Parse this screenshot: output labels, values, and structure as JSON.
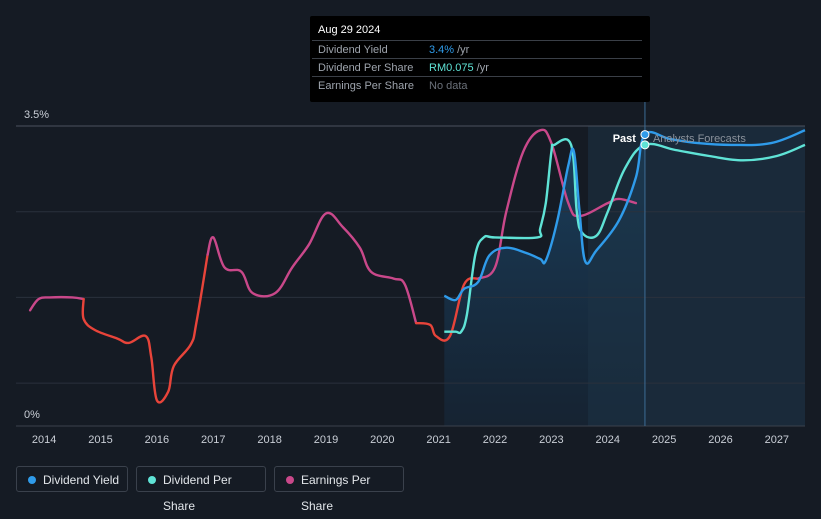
{
  "tooltip": {
    "date": "Aug 29 2024",
    "rows": [
      {
        "label": "Dividend Yield",
        "value": "3.4%",
        "unit": "/yr",
        "color": "#2f9bea"
      },
      {
        "label": "Dividend Per Share",
        "value": "RM0.075",
        "unit": "/yr",
        "color": "#5fe3d6"
      },
      {
        "label": "Earnings Per Share",
        "value": "No data",
        "unit": "",
        "color": "#6b717a"
      }
    ]
  },
  "legend": [
    {
      "label": "Dividend Yield",
      "color": "#2f9bea"
    },
    {
      "label": "Dividend Per Share",
      "color": "#5fe3d6"
    },
    {
      "label": "Earnings Per Share",
      "color": "#c9488a"
    }
  ],
  "chart_data": {
    "type": "line",
    "x_ticks": [
      "2014",
      "2015",
      "2016",
      "2017",
      "2018",
      "2019",
      "2020",
      "2021",
      "2022",
      "2023",
      "2024",
      "2025",
      "2026",
      "2027"
    ],
    "y_tick_labels": [
      "3.5%",
      "0%"
    ],
    "ylim": [
      0,
      3.5
    ],
    "xlim": [
      2013.5,
      2027.5
    ],
    "past_label": "Past",
    "forecast_label": "Analysts Forecasts",
    "divider_x": 2024.66,
    "forecast_start_x": 2023.65,
    "colors": {
      "yield": "#2f9bea",
      "dps": "#5fe3d6",
      "eps": "#c9488a",
      "eps_negative": "#e8443a",
      "grid": "#2a313c",
      "axis_text": "#c9ced6"
    },
    "series": [
      {
        "name": "Dividend Yield",
        "key": "yield",
        "points": [
          [
            2021.1,
            1.52
          ],
          [
            2021.3,
            1.47
          ],
          [
            2021.45,
            1.6
          ],
          [
            2021.7,
            1.68
          ],
          [
            2021.9,
            1.99
          ],
          [
            2022.2,
            2.08
          ],
          [
            2022.55,
            2.02
          ],
          [
            2022.8,
            1.95
          ],
          [
            2022.9,
            1.93
          ],
          [
            2023.1,
            2.38
          ],
          [
            2023.3,
            3.04
          ],
          [
            2023.4,
            3.2
          ],
          [
            2023.5,
            2.5
          ],
          [
            2023.6,
            1.92
          ],
          [
            2023.8,
            2.05
          ],
          [
            2024.2,
            2.4
          ],
          [
            2024.5,
            2.9
          ],
          [
            2024.66,
            3.4
          ],
          [
            2025.1,
            3.35
          ],
          [
            2025.6,
            3.3
          ],
          [
            2026.2,
            3.28
          ],
          [
            2026.9,
            3.3
          ],
          [
            2027.5,
            3.45
          ]
        ]
      },
      {
        "name": "Dividend Per Share",
        "key": "dps",
        "points": [
          [
            2021.1,
            1.1
          ],
          [
            2021.3,
            1.1
          ],
          [
            2021.4,
            1.1
          ],
          [
            2021.5,
            1.3
          ],
          [
            2021.65,
            2.0
          ],
          [
            2021.8,
            2.2
          ],
          [
            2022.0,
            2.2
          ],
          [
            2022.75,
            2.2
          ],
          [
            2022.8,
            2.3
          ],
          [
            2022.9,
            2.6
          ],
          [
            2023.0,
            3.2
          ],
          [
            2023.05,
            3.28
          ],
          [
            2023.35,
            3.28
          ],
          [
            2023.45,
            2.5
          ],
          [
            2023.55,
            2.25
          ],
          [
            2023.8,
            2.22
          ],
          [
            2024.0,
            2.5
          ],
          [
            2024.3,
            3.0
          ],
          [
            2024.66,
            3.28
          ],
          [
            2025.2,
            3.22
          ],
          [
            2025.8,
            3.15
          ],
          [
            2026.4,
            3.1
          ],
          [
            2027.0,
            3.15
          ],
          [
            2027.5,
            3.28
          ]
        ]
      },
      {
        "name": "Earnings Per Share",
        "key": "eps",
        "points": [
          [
            2013.75,
            1.35
          ],
          [
            2013.9,
            1.48
          ],
          [
            2014.1,
            1.5
          ],
          [
            2014.5,
            1.5
          ],
          [
            2014.7,
            1.48
          ],
          [
            2014.7,
            1.25
          ],
          [
            2014.9,
            1.12
          ],
          [
            2015.3,
            1.02
          ],
          [
            2015.5,
            0.97
          ],
          [
            2015.8,
            1.05
          ],
          [
            2015.9,
            0.8
          ],
          [
            2016.0,
            0.3
          ],
          [
            2016.2,
            0.4
          ],
          [
            2016.3,
            0.7
          ],
          [
            2016.6,
            0.95
          ],
          [
            2016.7,
            1.2
          ],
          [
            2016.9,
            2.0
          ],
          [
            2017.0,
            2.2
          ],
          [
            2017.2,
            1.85
          ],
          [
            2017.5,
            1.8
          ],
          [
            2017.7,
            1.55
          ],
          [
            2018.1,
            1.55
          ],
          [
            2018.4,
            1.85
          ],
          [
            2018.7,
            2.12
          ],
          [
            2019.0,
            2.48
          ],
          [
            2019.3,
            2.32
          ],
          [
            2019.6,
            2.08
          ],
          [
            2019.8,
            1.8
          ],
          [
            2020.2,
            1.72
          ],
          [
            2020.4,
            1.65
          ],
          [
            2020.6,
            1.2
          ],
          [
            2020.85,
            1.18
          ],
          [
            2020.95,
            1.05
          ],
          [
            2021.2,
            1.05
          ],
          [
            2021.45,
            1.65
          ],
          [
            2021.7,
            1.72
          ],
          [
            2022.0,
            1.85
          ],
          [
            2022.2,
            2.5
          ],
          [
            2022.5,
            3.2
          ],
          [
            2022.8,
            3.45
          ],
          [
            2023.0,
            3.3
          ],
          [
            2023.3,
            2.6
          ],
          [
            2023.5,
            2.45
          ],
          [
            2024.0,
            2.6
          ],
          [
            2024.2,
            2.65
          ],
          [
            2024.5,
            2.6
          ]
        ]
      }
    ]
  }
}
